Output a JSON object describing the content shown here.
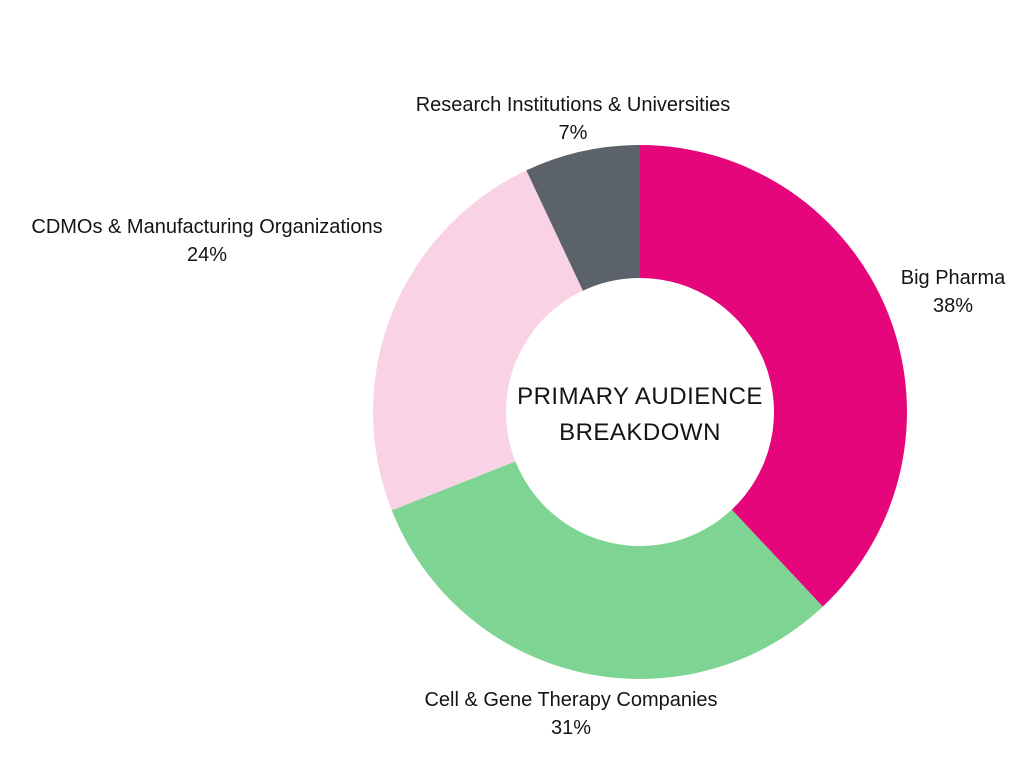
{
  "chart_data": {
    "type": "pie",
    "subtype": "donut",
    "title": "PRIMARY AUDIENCE BREAKDOWN",
    "title_lines": [
      "PRIMARY AUDIENCE",
      "BREAKDOWN"
    ],
    "start_angle_deg": 0,
    "direction": "clockwise",
    "inner_radius_ratio": 0.5,
    "background_color": "#ffffff",
    "label_color": "#141414",
    "legend_position": "none",
    "labels_outside": true,
    "slices": [
      {
        "label": "Big Pharma",
        "value": 38,
        "pct_label": "38%",
        "color": "#e6067c"
      },
      {
        "label": "Cell & Gene Therapy Companies",
        "value": 31,
        "pct_label": "31%",
        "color": "#7ed492"
      },
      {
        "label": "CDMOs & Manufacturing Organizations",
        "value": 24,
        "pct_label": "24%",
        "color": "#f9d3e5"
      },
      {
        "label": "Research Institutions & Universities",
        "value": 7,
        "pct_label": "7%",
        "color": "#5c6269"
      }
    ]
  }
}
